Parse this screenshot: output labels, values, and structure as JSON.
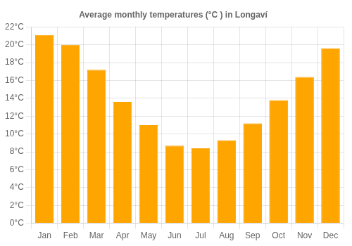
{
  "chart_data": {
    "type": "bar",
    "title": "Average monthly temperatures (°C ) in Longaví",
    "categories": [
      "Jan",
      "Feb",
      "Mar",
      "Apr",
      "May",
      "Jun",
      "Jul",
      "Aug",
      "Sep",
      "Oct",
      "Nov",
      "Dec"
    ],
    "values": [
      21.1,
      20.0,
      17.2,
      13.6,
      11.0,
      8.7,
      8.4,
      9.3,
      11.2,
      13.8,
      16.4,
      19.6
    ],
    "color": "#FFA500",
    "ylim": [
      0,
      22
    ],
    "yticks": [
      {
        "value": 0,
        "label": "0°C"
      },
      {
        "value": 2,
        "label": "2°C"
      },
      {
        "value": 4,
        "label": "4°C"
      },
      {
        "value": 6,
        "label": "6°C"
      },
      {
        "value": 8,
        "label": "8°C"
      },
      {
        "value": 10,
        "label": "10°C"
      },
      {
        "value": 12,
        "label": "12°C"
      },
      {
        "value": 14,
        "label": "14°C"
      },
      {
        "value": 16,
        "label": "16°C"
      },
      {
        "value": 18,
        "label": "18°C"
      },
      {
        "value": 20,
        "label": "20°C"
      },
      {
        "value": 22,
        "label": "22°C"
      }
    ],
    "grid": true
  }
}
